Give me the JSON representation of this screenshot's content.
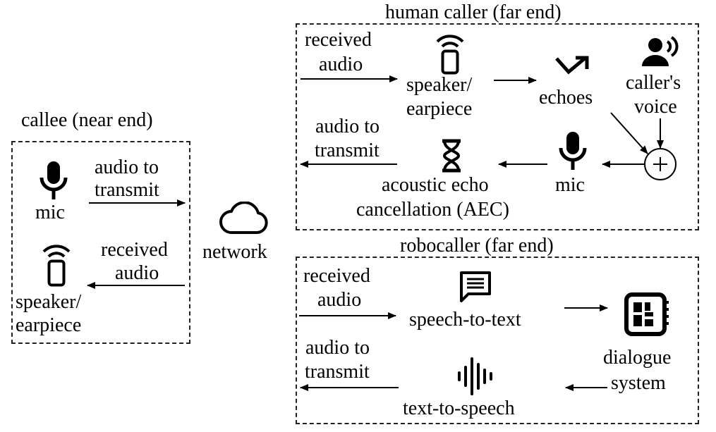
{
  "callee": {
    "title": "callee (near end)",
    "mic": "mic",
    "audio_to_transmit": [
      "audio to",
      "transmit"
    ],
    "received_audio": [
      "received",
      "audio"
    ],
    "speaker": [
      "speaker/",
      "earpiece"
    ]
  },
  "network": {
    "label": "network"
  },
  "human_caller": {
    "title": "human caller (far end)",
    "received_audio": [
      "received",
      "audio"
    ],
    "speaker": [
      "speaker/",
      "earpiece"
    ],
    "echoes": "echoes",
    "callers_voice": [
      "caller's",
      "voice"
    ],
    "audio_to_transmit": [
      "audio to",
      "transmit"
    ],
    "aec": [
      "acoustic echo",
      "cancellation (AEC)"
    ],
    "mic": "mic"
  },
  "robocaller": {
    "title": "robocaller (far end)",
    "received_audio": [
      "received",
      "audio"
    ],
    "speech_to_text": "speech-to-text",
    "dialogue_system": [
      "dialogue",
      "system"
    ],
    "audio_to_transmit": [
      "audio to",
      "transmit"
    ],
    "text_to_speech": "text-to-speech"
  },
  "icons": {
    "mic": "microphone-icon",
    "phone": "phone-wireless-icon",
    "cloud": "cloud-icon",
    "echo": "echo-arrow-icon",
    "voice": "speaking-person-icon",
    "hourglass": "hourglass-icon",
    "chat": "chat-bubble-icon",
    "chip": "processor-chip-icon",
    "waveform": "audio-waveform-icon",
    "sum": "summation-node-icon"
  }
}
